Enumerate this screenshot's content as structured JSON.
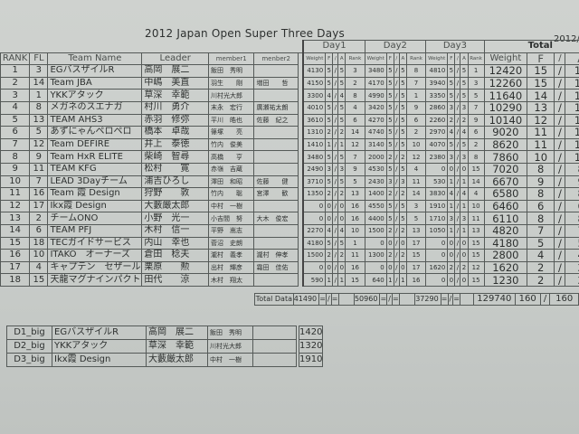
{
  "title": "2012 Japan Open Super Three Days",
  "date": "2012/",
  "headers": {
    "rank": "RANK",
    "fl": "FL",
    "team": "Team Name",
    "leader": "Leader",
    "member1": "member1",
    "member2": "menber2",
    "day1": "Day1",
    "day2": "Day2",
    "day3": "Day3",
    "total": "Total",
    "weight": "Weight",
    "f": "F",
    "slash": "/",
    "a": "A",
    "rankcol": "Rank"
  },
  "rows": [
    {
      "rank": "1",
      "fl": "3",
      "team": "EGバスザイルR",
      "leader": "高岡　展二",
      "m1": "飯田　秀明",
      "m2": "",
      "d1": [
        "4130",
        "5",
        "/",
        "5",
        "3"
      ],
      "d2": [
        "3480",
        "5",
        "/",
        "5",
        "8"
      ],
      "d3": [
        "4810",
        "5",
        "/",
        "5",
        "1"
      ],
      "t": [
        "12420",
        "15",
        "/",
        "15"
      ]
    },
    {
      "rank": "2",
      "fl": "14",
      "team": "Team JBA",
      "leader": "中嶋　美直",
      "m1": "羽生　　剛",
      "m2": "増田　　哲",
      "d1": [
        "4150",
        "5",
        "/",
        "5",
        "2"
      ],
      "d2": [
        "4170",
        "5",
        "/",
        "5",
        "7"
      ],
      "d3": [
        "3940",
        "5",
        "/",
        "5",
        "3"
      ],
      "t": [
        "12260",
        "15",
        "/",
        "15"
      ]
    },
    {
      "rank": "3",
      "fl": "1",
      "team": "YKKアタック",
      "leader": "草深　幸範",
      "m1": "川村光大郎",
      "m2": "",
      "d1": [
        "3300",
        "4",
        "/",
        "4",
        "8"
      ],
      "d2": [
        "4990",
        "5",
        "/",
        "5",
        "1"
      ],
      "d3": [
        "3350",
        "5",
        "/",
        "5",
        "5"
      ],
      "t": [
        "11640",
        "14",
        "/",
        "14"
      ]
    },
    {
      "rank": "4",
      "fl": "8",
      "team": "メガネのスエナガ",
      "leader": "村川　勇介",
      "m1": "末永　宏行",
      "m2": "廣瀬祐太朗",
      "d1": [
        "4010",
        "5",
        "/",
        "5",
        "4"
      ],
      "d2": [
        "3420",
        "5",
        "/",
        "5",
        "9"
      ],
      "d3": [
        "2860",
        "3",
        "/",
        "3",
        "7"
      ],
      "t": [
        "10290",
        "13",
        "/",
        "13"
      ]
    },
    {
      "rank": "5",
      "fl": "13",
      "team": "TEAM  AHS3",
      "leader": "赤羽　修弥",
      "m1": "平川　皓也",
      "m2": "佐藤　紀之",
      "d1": [
        "3610",
        "5",
        "/",
        "5",
        "6"
      ],
      "d2": [
        "4270",
        "5",
        "/",
        "5",
        "6"
      ],
      "d3": [
        "2260",
        "2",
        "/",
        "2",
        "9"
      ],
      "t": [
        "10140",
        "12",
        "/",
        "12"
      ]
    },
    {
      "rank": "6",
      "fl": "5",
      "team": "あずにゃんペロペロ",
      "leader": "橋本　卓哉",
      "m1": "篠塚　　亮",
      "m2": "",
      "d1": [
        "1310",
        "2",
        "/",
        "2",
        "14"
      ],
      "d2": [
        "4740",
        "5",
        "/",
        "5",
        "2"
      ],
      "d3": [
        "2970",
        "4",
        "/",
        "4",
        "6"
      ],
      "t": [
        "9020",
        "11",
        "/",
        "11"
      ]
    },
    {
      "rank": "7",
      "fl": "12",
      "team": "Team DEFIRE",
      "leader": "井上　泰徳",
      "m1": "竹内　俊美",
      "m2": "",
      "d1": [
        "1410",
        "1",
        "/",
        "1",
        "12"
      ],
      "d2": [
        "3140",
        "5",
        "/",
        "5",
        "10"
      ],
      "d3": [
        "4070",
        "5",
        "/",
        "5",
        "2"
      ],
      "t": [
        "8620",
        "11",
        "/",
        "11"
      ]
    },
    {
      "rank": "8",
      "fl": "9",
      "team": "Team HxR ELITE",
      "leader": "柴崎　智尋",
      "m1": "高橋　　亨",
      "m2": "",
      "d1": [
        "3480",
        "5",
        "/",
        "5",
        "7"
      ],
      "d2": [
        "2000",
        "2",
        "/",
        "2",
        "12"
      ],
      "d3": [
        "2380",
        "3",
        "/",
        "3",
        "8"
      ],
      "t": [
        "7860",
        "10",
        "/",
        "10"
      ]
    },
    {
      "rank": "9",
      "fl": "11",
      "team": "TEAM KFG",
      "leader": "松村　　寛",
      "m1": "赤嶺　吉蔵",
      "m2": "",
      "d1": [
        "2490",
        "3",
        "/",
        "3",
        "9"
      ],
      "d2": [
        "4530",
        "5",
        "/",
        "5",
        "4"
      ],
      "d3": [
        "0",
        "0",
        "/",
        "0",
        "15"
      ],
      "t": [
        "7020",
        "8",
        "/",
        "8"
      ]
    },
    {
      "rank": "10",
      "fl": "7",
      "team": "LEAD 3Dayチーム",
      "leader": "浦吉ひろし",
      "m1": "澤田　和昭",
      "m2": "佐藤　　健",
      "d1": [
        "3710",
        "5",
        "/",
        "5",
        "5"
      ],
      "d2": [
        "2430",
        "3",
        "/",
        "3",
        "11"
      ],
      "d3": [
        "530",
        "1",
        "/",
        "1",
        "14"
      ],
      "t": [
        "6670",
        "9",
        "/",
        "9"
      ]
    },
    {
      "rank": "11",
      "fl": "16",
      "team": "Team 霞 Design",
      "leader": "狩野　　敦",
      "m1": "竹内　　聡",
      "m2": "宮澤　　歓",
      "d1": [
        "1350",
        "2",
        "/",
        "2",
        "13"
      ],
      "d2": [
        "1400",
        "2",
        "/",
        "2",
        "14"
      ],
      "d3": [
        "3830",
        "4",
        "/",
        "4",
        "4"
      ],
      "t": [
        "6580",
        "8",
        "/",
        "8"
      ]
    },
    {
      "rank": "12",
      "fl": "17",
      "team": "Ikx霞 Design",
      "leader": "大藪厳太郎",
      "m1": "中村　一樹",
      "m2": "",
      "d1": [
        "0",
        "0",
        "/",
        "0",
        "16"
      ],
      "d2": [
        "4550",
        "5",
        "/",
        "5",
        "3"
      ],
      "d3": [
        "1910",
        "1",
        "/",
        "1",
        "10"
      ],
      "t": [
        "6460",
        "6",
        "/",
        "6"
      ]
    },
    {
      "rank": "13",
      "fl": "2",
      "team": "チームONO",
      "leader": "小野　光一",
      "m1": "小吉間　努",
      "m2": "大木　俊宏",
      "d1": [
        "0",
        "0",
        "/",
        "0",
        "16"
      ],
      "d2": [
        "4400",
        "5",
        "/",
        "5",
        "5"
      ],
      "d3": [
        "1710",
        "3",
        "/",
        "3",
        "11"
      ],
      "t": [
        "6110",
        "8",
        "/",
        "8"
      ]
    },
    {
      "rank": "14",
      "fl": "6",
      "team": "TEAM  PFJ",
      "leader": "木村　信一",
      "m1": "平野　嵩志",
      "m2": "",
      "d1": [
        "2270",
        "4",
        "/",
        "4",
        "10"
      ],
      "d2": [
        "1500",
        "2",
        "/",
        "2",
        "13"
      ],
      "d3": [
        "1050",
        "1",
        "/",
        "1",
        "13"
      ],
      "t": [
        "4820",
        "7",
        "/",
        "7"
      ]
    },
    {
      "rank": "15",
      "fl": "18",
      "team": "TECガイドサービス",
      "leader": "内山　幸也",
      "m1": "菅沼　史朗",
      "m2": "",
      "d1": [
        "4180",
        "5",
        "/",
        "5",
        "1"
      ],
      "d2": [
        "0",
        "0",
        "/",
        "0",
        "17"
      ],
      "d3": [
        "0",
        "0",
        "/",
        "0",
        "15"
      ],
      "t": [
        "4180",
        "5",
        "/",
        "5"
      ]
    },
    {
      "rank": "16",
      "fl": "10",
      "team": "ITAKO　オーナーズ",
      "leader": "倉田　稔夫",
      "m1": "瀧村　義孝",
      "m2": "瀧村　伸孝",
      "d1": [
        "1500",
        "2",
        "/",
        "2",
        "11"
      ],
      "d2": [
        "1300",
        "2",
        "/",
        "2",
        "15"
      ],
      "d3": [
        "0",
        "0",
        "/",
        "0",
        "15"
      ],
      "t": [
        "2800",
        "4",
        "/",
        "4"
      ]
    },
    {
      "rank": "17",
      "fl": "4",
      "team": "キャプテン　セザール",
      "leader": "栗原　　勲",
      "m1": "出村　輝彦",
      "m2": "霜田　佳佑",
      "d1": [
        "0",
        "0",
        "/",
        "0",
        "16"
      ],
      "d2": [
        "0",
        "0",
        "/",
        "0",
        "17"
      ],
      "d3": [
        "1620",
        "2",
        "/",
        "2",
        "12"
      ],
      "t": [
        "1620",
        "2",
        "/",
        "2"
      ]
    },
    {
      "rank": "18",
      "fl": "15",
      "team": "天龍マグナインパクト",
      "leader": "田代　　涼",
      "m1": "木村　翔太",
      "m2": "",
      "d1": [
        "590",
        "1",
        "/",
        "1",
        "15"
      ],
      "d2": [
        "640",
        "1",
        "/",
        "1",
        "16"
      ],
      "d3": [
        "0",
        "0",
        "/",
        "0",
        "15"
      ],
      "t": [
        "1230",
        "2",
        "/",
        "2"
      ]
    }
  ],
  "total_row": {
    "label": "Total Data",
    "d1": [
      "41490",
      "=",
      "/",
      "=",
      ""
    ],
    "d2": [
      "50960",
      "=",
      "/",
      "=",
      ""
    ],
    "d3": [
      "37290",
      "=",
      "/",
      "=",
      ""
    ],
    "t": [
      "129740",
      "160",
      "/",
      "160"
    ]
  },
  "big_fish": [
    {
      "day": "D1_big",
      "team": "EGバスザイルR",
      "leader": "高岡　展二",
      "m1": "飯田　秀明",
      "m2": "",
      "weight": "1420"
    },
    {
      "day": "D2_big",
      "team": "YKKアタック",
      "leader": "草深　幸範",
      "m1": "川村光大郎",
      "m2": "",
      "weight": "1320"
    },
    {
      "day": "D3_big",
      "team": "Ikx霞 Design",
      "leader": "大藪厳太郎",
      "m1": "中村　一樹",
      "m2": "",
      "weight": "1910"
    }
  ]
}
